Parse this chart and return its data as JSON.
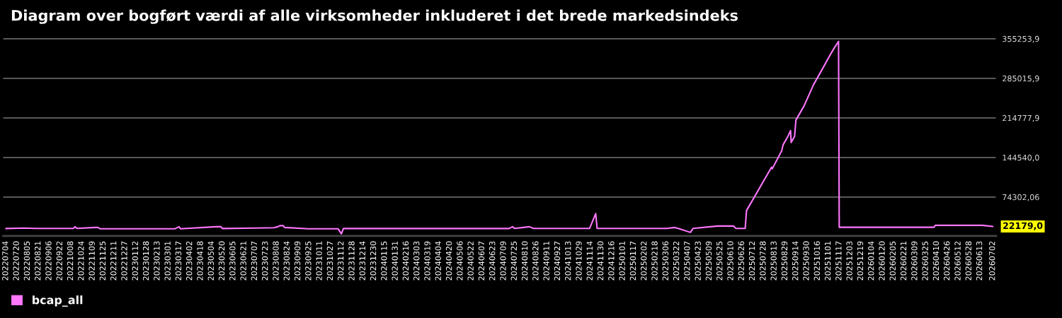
{
  "chart_data": {
    "type": "line",
    "title": "Diagram over bogført værdi af alle virksomheder inkluderet i det brede markedsindeks",
    "series": [
      {
        "name": "bcap_all",
        "color": "#ff77ff",
        "x": [
          "2022-07-04",
          "2022-07-31",
          "2022-08-17",
          "2022-10-12",
          "2022-10-14",
          "2022-10-17",
          "2022-11-13",
          "2022-11-17",
          "2022-11-20",
          "2023-03-11",
          "2023-03-17",
          "2023-03-19",
          "2023-05-10",
          "2023-05-18",
          "2023-05-20",
          "2023-07-06",
          "2023-08-04",
          "2023-08-10",
          "2023-08-13",
          "2023-08-18",
          "2023-08-20",
          "2023-09-24",
          "2023-11-07",
          "2023-11-12",
          "2023-11-15",
          "2024-07-17",
          "2024-07-22",
          "2024-07-25",
          "2024-08-16",
          "2024-08-22",
          "2024-11-13",
          "2024-11-22",
          "2024-11-24",
          "2025-03-07",
          "2025-03-19",
          "2025-03-24",
          "2025-04-11",
          "2025-04-15",
          "2025-05-21",
          "2025-06-14",
          "2025-06-17",
          "2025-07-01",
          "2025-07-03",
          "2025-08-09",
          "2025-08-10",
          "2025-08-24",
          "2025-08-26",
          "2025-09-02",
          "2025-09-06",
          "2025-09-07",
          "2025-09-12",
          "2025-09-14",
          "2025-09-26",
          "2025-10-10",
          "2025-10-20",
          "2025-11-04",
          "2025-11-11",
          "2025-11-16",
          "2025-11-17",
          "2026-04-06",
          "2026-04-08",
          "2026-06-17",
          "2026-07-02"
        ],
        "values": [
          18490,
          19370,
          18740,
          18740,
          21620,
          18740,
          20370,
          20370,
          18110,
          18110,
          21620,
          18110,
          21620,
          21620,
          18490,
          19370,
          19990,
          21620,
          23500,
          23500,
          20370,
          18110,
          18110,
          9080,
          18490,
          18490,
          21620,
          18740,
          21620,
          18740,
          18740,
          44950,
          18740,
          18740,
          20370,
          18740,
          11590,
          18740,
          22880,
          22880,
          18740,
          18740,
          50470,
          127360,
          124470,
          156710,
          167120,
          181790,
          192200,
          171250,
          182170,
          211010,
          236100,
          273730,
          295050,
          327660,
          341460,
          350620,
          20740,
          20740,
          24130,
          24130,
          22179
        ]
      }
    ],
    "ylim": [
      5300,
      362000
    ],
    "yticks": [
      {
        "value": 74302.06,
        "label": "74302,06"
      },
      {
        "value": 144540.0,
        "label": "144540,0"
      },
      {
        "value": 214777.9,
        "label": "214777,9"
      },
      {
        "value": 285015.9,
        "label": "285015,9"
      },
      {
        "value": 355253.9,
        "label": "355253,9"
      }
    ],
    "xlim": [
      "2022-06-30",
      "2026-07-07"
    ],
    "xticks": [
      {
        "value": "2022-07-04",
        "label": "20220704"
      },
      {
        "value": "2022-07-20",
        "label": "20220720"
      },
      {
        "value": "2022-08-05",
        "label": "20220805"
      },
      {
        "value": "2022-08-21",
        "label": "20220821"
      },
      {
        "value": "2022-09-06",
        "label": "20220906"
      },
      {
        "value": "2022-09-22",
        "label": "20220922"
      },
      {
        "value": "2022-10-08",
        "label": "20221008"
      },
      {
        "value": "2022-10-24",
        "label": "20221024"
      },
      {
        "value": "2022-11-09",
        "label": "20221109"
      },
      {
        "value": "2022-11-25",
        "label": "20221125"
      },
      {
        "value": "2022-12-11",
        "label": "20221211"
      },
      {
        "value": "2022-12-27",
        "label": "20221227"
      },
      {
        "value": "2023-01-12",
        "label": "20230112"
      },
      {
        "value": "2023-01-28",
        "label": "20230128"
      },
      {
        "value": "2023-02-13",
        "label": "20230213"
      },
      {
        "value": "2023-03-01",
        "label": "20230301"
      },
      {
        "value": "2023-03-17",
        "label": "20230317"
      },
      {
        "value": "2023-04-02",
        "label": "20230402"
      },
      {
        "value": "2023-04-18",
        "label": "20230418"
      },
      {
        "value": "2023-05-04",
        "label": "20230504"
      },
      {
        "value": "2023-05-20",
        "label": "20230520"
      },
      {
        "value": "2023-06-05",
        "label": "20230605"
      },
      {
        "value": "2023-06-21",
        "label": "20230621"
      },
      {
        "value": "2023-07-07",
        "label": "20230707"
      },
      {
        "value": "2023-07-23",
        "label": "20230723"
      },
      {
        "value": "2023-08-08",
        "label": "20230808"
      },
      {
        "value": "2023-08-24",
        "label": "20230824"
      },
      {
        "value": "2023-09-09",
        "label": "20230909"
      },
      {
        "value": "2023-09-25",
        "label": "20230925"
      },
      {
        "value": "2023-10-11",
        "label": "20231011"
      },
      {
        "value": "2023-10-27",
        "label": "20231027"
      },
      {
        "value": "2023-11-12",
        "label": "20231112"
      },
      {
        "value": "2023-11-28",
        "label": "20231128"
      },
      {
        "value": "2023-12-14",
        "label": "20231214"
      },
      {
        "value": "2023-12-30",
        "label": "20231230"
      },
      {
        "value": "2024-01-15",
        "label": "20240115"
      },
      {
        "value": "2024-01-31",
        "label": "20240131"
      },
      {
        "value": "2024-02-16",
        "label": "20240216"
      },
      {
        "value": "2024-03-03",
        "label": "20240303"
      },
      {
        "value": "2024-03-19",
        "label": "20240319"
      },
      {
        "value": "2024-04-04",
        "label": "20240404"
      },
      {
        "value": "2024-04-20",
        "label": "20240420"
      },
      {
        "value": "2024-05-06",
        "label": "20240506"
      },
      {
        "value": "2024-05-22",
        "label": "20240522"
      },
      {
        "value": "2024-06-07",
        "label": "20240607"
      },
      {
        "value": "2024-06-23",
        "label": "20240623"
      },
      {
        "value": "2024-07-09",
        "label": "20240709"
      },
      {
        "value": "2024-07-25",
        "label": "20240725"
      },
      {
        "value": "2024-08-10",
        "label": "20240810"
      },
      {
        "value": "2024-08-26",
        "label": "20240826"
      },
      {
        "value": "2024-09-11",
        "label": "20240911"
      },
      {
        "value": "2024-09-27",
        "label": "20240927"
      },
      {
        "value": "2024-10-13",
        "label": "20241013"
      },
      {
        "value": "2024-10-29",
        "label": "20241029"
      },
      {
        "value": "2024-11-14",
        "label": "20241114"
      },
      {
        "value": "2024-11-30",
        "label": "20241130"
      },
      {
        "value": "2024-12-16",
        "label": "20241216"
      },
      {
        "value": "2025-01-01",
        "label": "20250101"
      },
      {
        "value": "2025-01-17",
        "label": "20250117"
      },
      {
        "value": "2025-02-02",
        "label": "20250202"
      },
      {
        "value": "2025-02-18",
        "label": "20250218"
      },
      {
        "value": "2025-03-06",
        "label": "20250306"
      },
      {
        "value": "2025-03-22",
        "label": "20250322"
      },
      {
        "value": "2025-04-07",
        "label": "20250407"
      },
      {
        "value": "2025-04-23",
        "label": "20250423"
      },
      {
        "value": "2025-05-09",
        "label": "20250509"
      },
      {
        "value": "2025-05-25",
        "label": "20250525"
      },
      {
        "value": "2025-06-10",
        "label": "20250610"
      },
      {
        "value": "2025-06-26",
        "label": "20250626"
      },
      {
        "value": "2025-07-12",
        "label": "20250712"
      },
      {
        "value": "2025-07-28",
        "label": "20250728"
      },
      {
        "value": "2025-08-13",
        "label": "20250813"
      },
      {
        "value": "2025-08-29",
        "label": "20250829"
      },
      {
        "value": "2025-09-14",
        "label": "20250914"
      },
      {
        "value": "2025-09-30",
        "label": "20250930"
      },
      {
        "value": "2025-10-16",
        "label": "20251016"
      },
      {
        "value": "2025-11-01",
        "label": "20251101"
      },
      {
        "value": "2025-11-17",
        "label": "20251117"
      },
      {
        "value": "2025-12-03",
        "label": "20251203"
      },
      {
        "value": "2025-12-19",
        "label": "20251219"
      },
      {
        "value": "2026-01-04",
        "label": "20260104"
      },
      {
        "value": "2026-01-20",
        "label": "20260120"
      },
      {
        "value": "2026-02-05",
        "label": "20260205"
      },
      {
        "value": "2026-02-21",
        "label": "20260221"
      },
      {
        "value": "2026-03-09",
        "label": "20260309"
      },
      {
        "value": "2026-03-25",
        "label": "20260325"
      },
      {
        "value": "2026-04-10",
        "label": "20260410"
      },
      {
        "value": "2026-04-26",
        "label": "20260426"
      },
      {
        "value": "2026-05-12",
        "label": "20260512"
      },
      {
        "value": "2026-05-28",
        "label": "20260528"
      },
      {
        "value": "2026-06-13",
        "label": "20260613"
      },
      {
        "value": "2026-07-02",
        "label": "20260702"
      }
    ],
    "annotations": [
      {
        "text": "22179,0",
        "x": "2026-07-02",
        "y": 22179
      }
    ],
    "grid": "y",
    "legend": "bottom left",
    "marker": "none",
    "line_style": "solid"
  }
}
